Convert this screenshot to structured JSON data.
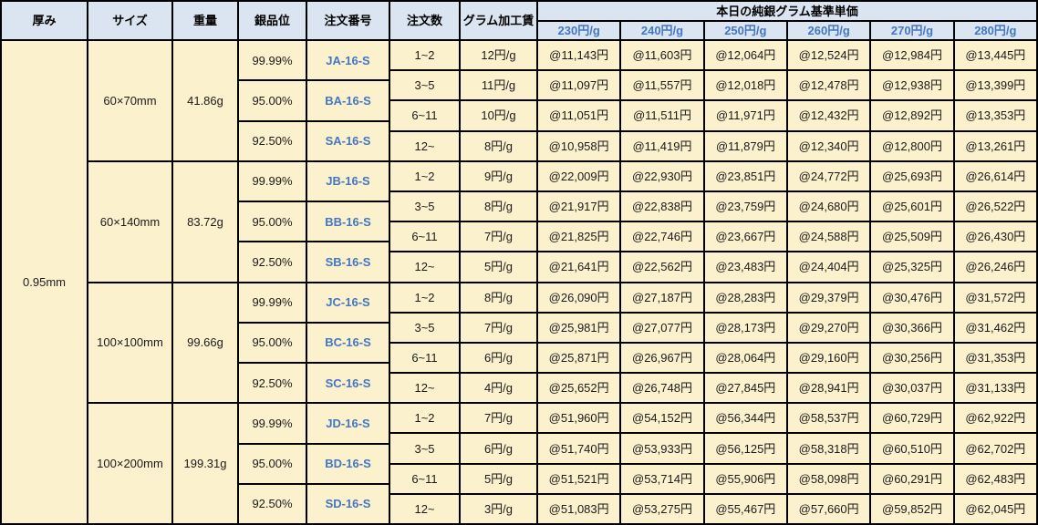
{
  "header": {
    "columns": [
      "厚み",
      "サイズ",
      "重量",
      "銀品位",
      "注文番号",
      "注文数",
      "グラム加工賃"
    ],
    "price_group_title": "本日の純銀グラム基準単価",
    "price_columns": [
      "230円/g",
      "240円/g",
      "250円/g",
      "260円/g",
      "270円/g",
      "280円/g"
    ]
  },
  "thickness": "0.95mm",
  "colors": {
    "header_bg": "#dbe5f1",
    "body_bg": "#fcf1cd",
    "blue_text": "#4376c4",
    "border": "#000000"
  },
  "blocks": [
    {
      "size": "60×70mm",
      "weight": "41.86g",
      "purities": [
        {
          "purity": "99.99%",
          "code": "JA-16-S"
        },
        {
          "purity": "95.00%",
          "code": "BA-16-S"
        },
        {
          "purity": "92.50%",
          "code": "SA-16-S"
        }
      ],
      "rows": [
        {
          "qty": "1~2",
          "fee": "12円/g",
          "prices": [
            "@11,143円",
            "@11,603円",
            "@12,064円",
            "@12,524円",
            "@12,984円",
            "@13,445円"
          ]
        },
        {
          "qty": "3~5",
          "fee": "11円/g",
          "prices": [
            "@11,097円",
            "@11,557円",
            "@12,018円",
            "@12,478円",
            "@12,938円",
            "@13,399円"
          ]
        },
        {
          "qty": "6~11",
          "fee": "10円/g",
          "prices": [
            "@11,051円",
            "@11,511円",
            "@11,971円",
            "@12,432円",
            "@12,892円",
            "@13,353円"
          ]
        },
        {
          "qty": "12~",
          "fee": "8円/g",
          "prices": [
            "@10,958円",
            "@11,419円",
            "@11,879円",
            "@12,340円",
            "@12,800円",
            "@13,261円"
          ]
        }
      ]
    },
    {
      "size": "60×140mm",
      "weight": "83.72g",
      "purities": [
        {
          "purity": "99.99%",
          "code": "JB-16-S"
        },
        {
          "purity": "95.00%",
          "code": "BB-16-S"
        },
        {
          "purity": "92.50%",
          "code": "SB-16-S"
        }
      ],
      "rows": [
        {
          "qty": "1~2",
          "fee": "9円/g",
          "prices": [
            "@22,009円",
            "@22,930円",
            "@23,851円",
            "@24,772円",
            "@25,693円",
            "@26,614円"
          ]
        },
        {
          "qty": "3~5",
          "fee": "8円/g",
          "prices": [
            "@21,917円",
            "@22,838円",
            "@23,759円",
            "@24,680円",
            "@25,601円",
            "@26,522円"
          ]
        },
        {
          "qty": "6~11",
          "fee": "7円/g",
          "prices": [
            "@21,825円",
            "@22,746円",
            "@23,667円",
            "@24,588円",
            "@25,509円",
            "@26,430円"
          ]
        },
        {
          "qty": "12~",
          "fee": "5円/g",
          "prices": [
            "@21,641円",
            "@22,562円",
            "@23,483円",
            "@24,404円",
            "@25,325円",
            "@26,246円"
          ]
        }
      ]
    },
    {
      "size": "100×100mm",
      "weight": "99.66g",
      "purities": [
        {
          "purity": "99.99%",
          "code": "JC-16-S"
        },
        {
          "purity": "95.00%",
          "code": "BC-16-S"
        },
        {
          "purity": "92.50%",
          "code": "SC-16-S"
        }
      ],
      "rows": [
        {
          "qty": "1~2",
          "fee": "8円/g",
          "prices": [
            "@26,090円",
            "@27,187円",
            "@28,283円",
            "@29,379円",
            "@30,476円",
            "@31,572円"
          ]
        },
        {
          "qty": "3~5",
          "fee": "7円/g",
          "prices": [
            "@25,981円",
            "@27,077円",
            "@28,173円",
            "@29,270円",
            "@30,366円",
            "@31,462円"
          ]
        },
        {
          "qty": "6~11",
          "fee": "6円/g",
          "prices": [
            "@25,871円",
            "@26,967円",
            "@28,064円",
            "@29,160円",
            "@30,256円",
            "@31,353円"
          ]
        },
        {
          "qty": "12~",
          "fee": "4円/g",
          "prices": [
            "@25,652円",
            "@26,748円",
            "@27,845円",
            "@28,941円",
            "@30,037円",
            "@31,133円"
          ]
        }
      ]
    },
    {
      "size": "100×200mm",
      "weight": "199.31g",
      "purities": [
        {
          "purity": "99.99%",
          "code": "JD-16-S"
        },
        {
          "purity": "95.00%",
          "code": "BD-16-S"
        },
        {
          "purity": "92.50%",
          "code": "SD-16-S"
        }
      ],
      "rows": [
        {
          "qty": "1~2",
          "fee": "7円/g",
          "prices": [
            "@51,960円",
            "@54,152円",
            "@56,344円",
            "@58,537円",
            "@60,729円",
            "@62,922円"
          ]
        },
        {
          "qty": "3~5",
          "fee": "6円/g",
          "prices": [
            "@51,740円",
            "@53,933円",
            "@56,125円",
            "@58,318円",
            "@60,510円",
            "@62,702円"
          ]
        },
        {
          "qty": "6~11",
          "fee": "5円/g",
          "prices": [
            "@51,521円",
            "@53,714円",
            "@55,906円",
            "@58,098円",
            "@60,291円",
            "@62,483円"
          ]
        },
        {
          "qty": "12~",
          "fee": "3円/g",
          "prices": [
            "@51,083円",
            "@53,275円",
            "@55,467円",
            "@57,660円",
            "@59,852円",
            "@62,045円"
          ]
        }
      ]
    }
  ]
}
